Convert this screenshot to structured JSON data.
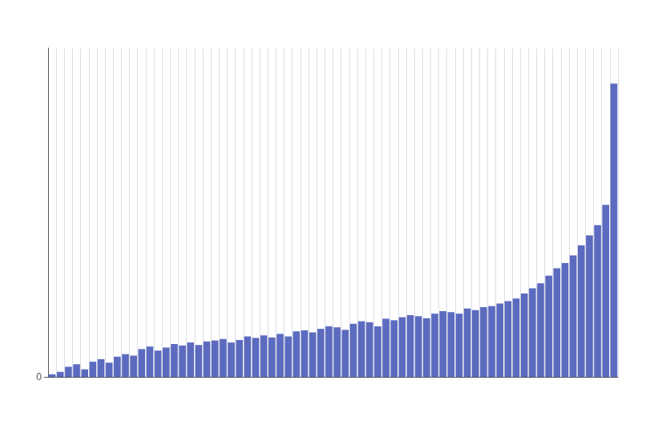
{
  "chart_data": {
    "type": "bar",
    "categories": [
      null,
      null,
      null,
      null,
      null,
      null,
      null,
      null,
      null,
      null,
      null,
      null,
      null,
      null,
      null,
      null,
      null,
      null,
      null,
      null,
      null,
      null,
      null,
      null,
      null,
      null,
      null,
      null,
      null,
      null,
      null,
      null,
      null,
      null,
      null,
      null,
      null,
      null,
      null,
      null,
      null,
      null,
      null,
      null,
      null,
      null,
      null,
      null,
      null,
      null,
      null,
      null,
      null,
      null,
      null,
      null,
      null,
      null,
      null,
      null,
      null,
      null,
      null,
      null,
      null,
      null,
      null,
      null,
      null,
      null
    ],
    "values": [
      0.005,
      0.01,
      0.02,
      0.025,
      0.015,
      0.03,
      0.035,
      0.028,
      0.04,
      0.045,
      0.042,
      0.055,
      0.06,
      0.052,
      0.058,
      0.065,
      0.062,
      0.068,
      0.063,
      0.07,
      0.072,
      0.075,
      0.068,
      0.073,
      0.08,
      0.077,
      0.082,
      0.078,
      0.085,
      0.08,
      0.09,
      0.092,
      0.088,
      0.095,
      0.1,
      0.098,
      0.093,
      0.105,
      0.11,
      0.108,
      0.1,
      0.115,
      0.112,
      0.118,
      0.122,
      0.12,
      0.116,
      0.125,
      0.13,
      0.128,
      0.125,
      0.135,
      0.132,
      0.138,
      0.14,
      0.145,
      0.15,
      0.155,
      0.165,
      0.175,
      0.185,
      0.2,
      0.215,
      0.225,
      0.24,
      0.26,
      0.28,
      0.3,
      0.34,
      0.58
    ],
    "color": "#5c6bc0",
    "ylim": [
      0,
      0.65
    ],
    "yticks": [
      0
    ],
    "grid": true,
    "tick_labels": "y"
  }
}
